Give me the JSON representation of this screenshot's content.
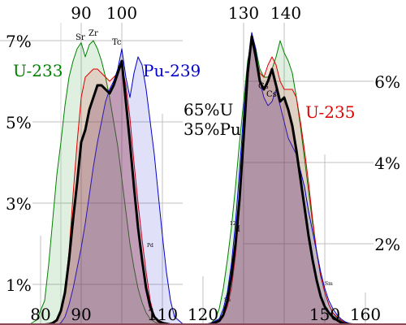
{
  "chart_data": {
    "type": "area",
    "x_ticks": [
      "80",
      "90",
      "100",
      "110",
      "120",
      "150",
      "160"
    ],
    "x_ticks_top": [
      "90",
      "100",
      "130",
      "140"
    ],
    "y_ticks_left": [
      "1%",
      "3%",
      "5%",
      "7%"
    ],
    "y_ticks_right": [
      "2%",
      "4%",
      "6%"
    ],
    "xlim": [
      75,
      165
    ],
    "ylim": [
      0,
      7.2
    ],
    "mix_label": [
      "65%U",
      "35%Pu"
    ],
    "element_labels": [
      "Sr",
      "Zr",
      "Tc",
      "Cs",
      "Cs",
      "Pd",
      "129",
      "I",
      "Sn",
      "Sm"
    ],
    "colors": {
      "U-233": "#008000",
      "U-235": "#e00000",
      "Pu-239": "#0000cc",
      "mix": "#000000"
    },
    "series": [
      {
        "name": "U-233",
        "x": [
          75,
          77,
          79,
          81,
          82,
          83,
          84,
          85,
          86,
          87,
          88,
          89,
          90,
          91,
          92,
          93,
          94,
          95,
          96,
          97,
          98,
          99,
          100,
          101,
          102,
          103,
          104,
          105,
          106,
          107,
          108,
          109,
          110,
          111,
          112,
          113,
          114,
          115,
          116,
          117,
          118,
          119,
          120,
          121,
          122,
          123,
          124,
          125,
          126,
          127,
          128,
          129,
          130,
          131,
          132,
          133,
          134,
          135,
          136,
          137,
          138,
          139,
          140,
          141,
          142,
          143,
          144,
          145,
          146,
          147,
          148,
          149,
          150,
          151,
          152,
          153,
          154,
          155,
          156,
          157,
          158,
          159,
          160,
          163
        ],
        "y": [
          0,
          0,
          0.12,
          0.6,
          1.5,
          2.6,
          3.7,
          4.5,
          5.4,
          6.1,
          6.5,
          6.8,
          6.95,
          6.6,
          6.9,
          7.0,
          6.8,
          6.5,
          6.1,
          5.6,
          5.0,
          4.4,
          3.6,
          2.8,
          2.0,
          1.4,
          0.9,
          0.55,
          0.3,
          0.15,
          0.08,
          0.03,
          0,
          0,
          0,
          0,
          0,
          0,
          0,
          0,
          0,
          0,
          0.01,
          0.02,
          0.05,
          0.15,
          0.4,
          0.9,
          1.6,
          2.4,
          3.4,
          4.5,
          5.5,
          6.5,
          7.0,
          6.8,
          6.3,
          6.1,
          6.1,
          6.3,
          6.6,
          7.0,
          6.7,
          6.5,
          6.2,
          5.6,
          4.9,
          4.1,
          3.3,
          2.5,
          1.8,
          1.2,
          0.8,
          0.5,
          0.3,
          0.18,
          0.1,
          0.06,
          0.03,
          0.01,
          0,
          0,
          0,
          0
        ]
      },
      {
        "name": "U-235",
        "x": [
          75,
          80,
          82,
          84,
          85,
          86,
          87,
          88,
          89,
          90,
          91,
          92,
          93,
          94,
          95,
          96,
          97,
          98,
          99,
          100,
          101,
          102,
          103,
          104,
          105,
          106,
          107,
          108,
          109,
          110,
          112,
          120,
          122,
          124,
          125,
          126,
          127,
          128,
          129,
          130,
          131,
          132,
          133,
          134,
          135,
          136,
          137,
          138,
          139,
          140,
          141,
          142,
          143,
          144,
          145,
          146,
          147,
          148,
          149,
          150,
          151,
          152,
          153,
          154,
          155,
          156,
          157,
          158,
          160,
          163
        ],
        "y": [
          0,
          0,
          0.02,
          0.1,
          0.3,
          0.9,
          1.8,
          3.2,
          4.5,
          5.6,
          6.1,
          6.2,
          6.3,
          6.3,
          6.2,
          6.1,
          6.0,
          6.1,
          6.2,
          6.4,
          5.9,
          5.1,
          4.0,
          3.0,
          2.1,
          1.3,
          0.6,
          0.2,
          0.06,
          0.02,
          0,
          0,
          0.02,
          0.08,
          0.2,
          0.45,
          0.9,
          1.7,
          2.9,
          4.4,
          6.0,
          7.0,
          6.6,
          6.2,
          6.1,
          6.4,
          6.6,
          6.4,
          6.0,
          5.8,
          5.8,
          5.8,
          5.6,
          5.0,
          4.3,
          3.5,
          2.6,
          1.8,
          1.2,
          0.8,
          0.5,
          0.3,
          0.2,
          0.12,
          0.06,
          0.03,
          0.02,
          0.01,
          0,
          0
        ]
      },
      {
        "name": "Pu-239",
        "x": [
          75,
          84,
          85,
          86,
          87,
          88,
          89,
          90,
          91,
          92,
          93,
          94,
          95,
          96,
          97,
          98,
          99,
          100,
          101,
          102,
          103,
          104,
          105,
          106,
          107,
          108,
          109,
          110,
          111,
          112,
          113,
          115,
          120,
          122,
          124,
          125,
          126,
          127,
          128,
          129,
          130,
          131,
          132,
          133,
          134,
          135,
          136,
          137,
          138,
          139,
          140,
          141,
          142,
          143,
          144,
          145,
          146,
          147,
          148,
          149,
          150,
          151,
          152,
          153,
          154,
          155,
          156,
          157,
          158,
          160,
          163
        ],
        "y": [
          0,
          0,
          0.05,
          0.2,
          0.5,
          0.9,
          1.4,
          1.9,
          2.5,
          3.2,
          3.9,
          4.5,
          5.0,
          5.5,
          5.8,
          6.0,
          6.3,
          6.8,
          6.1,
          5.6,
          6.2,
          6.6,
          6.4,
          5.8,
          5.0,
          4.2,
          3.2,
          2.2,
          1.3,
          0.6,
          0.2,
          0.03,
          0,
          0.05,
          0.15,
          0.4,
          0.8,
          1.5,
          2.5,
          3.8,
          5.2,
          6.4,
          7.2,
          6.8,
          6.0,
          5.6,
          5.4,
          5.5,
          5.8,
          5.4,
          5.0,
          4.6,
          4.4,
          4.2,
          3.8,
          3.4,
          2.8,
          2.3,
          1.8,
          1.3,
          0.9,
          0.6,
          0.4,
          0.25,
          0.15,
          0.08,
          0.04,
          0.02,
          0.01,
          0,
          0
        ]
      },
      {
        "name": "65%U 35%Pu",
        "x": [
          75,
          80,
          82,
          83,
          84,
          85,
          86,
          87,
          88,
          89,
          90,
          91,
          92,
          93,
          94,
          95,
          96,
          97,
          98,
          99,
          100,
          101,
          102,
          103,
          104,
          105,
          106,
          107,
          108,
          109,
          110,
          112,
          120,
          122,
          124,
          125,
          126,
          127,
          128,
          129,
          130,
          131,
          132,
          133,
          134,
          135,
          136,
          137,
          138,
          139,
          140,
          141,
          142,
          143,
          144,
          145,
          146,
          147,
          148,
          149,
          150,
          151,
          152,
          153,
          154,
          155,
          156,
          157,
          158,
          159,
          160,
          163
        ],
        "y": [
          0,
          0,
          0.02,
          0.05,
          0.12,
          0.35,
          0.8,
          1.6,
          2.6,
          3.5,
          4.5,
          4.8,
          5.3,
          5.6,
          5.9,
          5.9,
          5.8,
          5.7,
          5.9,
          6.2,
          6.5,
          5.5,
          4.5,
          3.4,
          2.4,
          1.6,
          0.9,
          0.45,
          0.2,
          0.1,
          0.05,
          0.01,
          0,
          0.02,
          0.1,
          0.25,
          0.6,
          1.2,
          2.0,
          3.1,
          4.6,
          6.2,
          7.1,
          6.6,
          6.0,
          5.8,
          6.0,
          6.3,
          5.9,
          5.5,
          5.6,
          5.3,
          4.9,
          4.3,
          3.6,
          2.9,
          2.2,
          1.6,
          1.1,
          0.7,
          0.45,
          0.3,
          0.2,
          0.12,
          0.06,
          0.03,
          0.02,
          0.01,
          0,
          0,
          0,
          0
        ]
      }
    ]
  }
}
